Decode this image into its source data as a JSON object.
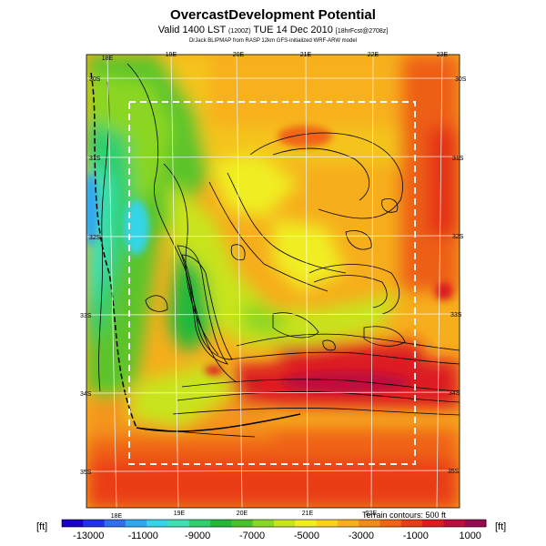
{
  "title": "OvercastDevelopment Potential",
  "subtitle_main": "Valid 1400 LST",
  "subtitle_small1": "(1200Z)",
  "subtitle_date": "TUE 14 Dec 2010",
  "subtitle_small2": "[18hrFcst@2708z]",
  "credit": "DrJack BLIPMAP from RASP 12km GFS-initialized WRF-ARW model",
  "terrain_note": "Terrain contours: 500 ft",
  "unit_left": "[ft]",
  "unit_right": "[ft]",
  "top_lon_labels": [
    "18E",
    "19E",
    "20E",
    "21E",
    "22E",
    "23E"
  ],
  "bottom_lon_labels": [
    "18E",
    "19E",
    "20E",
    "21E",
    "22E"
  ],
  "left_lat_labels": [
    "30S",
    "31S",
    "32S",
    "33S",
    "34S",
    "35S"
  ],
  "right_lat_labels": [
    "30S",
    "31S",
    "32S",
    "33S",
    "34S",
    "35S"
  ],
  "colorbar": {
    "tick_labels": [
      "-13000",
      "-11000",
      "-9000",
      "-7000",
      "-5000",
      "-3000",
      "-1000",
      "1000"
    ],
    "colors": [
      "#1b00c8",
      "#2230e8",
      "#2e70f0",
      "#2fa8f4",
      "#35d4e6",
      "#3ee0b4",
      "#2ecf6e",
      "#22b83a",
      "#4cc228",
      "#8ad624",
      "#c8e41e",
      "#f0ee22",
      "#f8d21c",
      "#f8b01a",
      "#f48a18",
      "#f06414",
      "#ea3c14",
      "#dc1c22",
      "#c00c3c",
      "#960a50"
    ]
  },
  "colors": {
    "background": "#ffffff",
    "grid": "#ffffff",
    "contour": "#000000",
    "box": "#ffffff"
  }
}
